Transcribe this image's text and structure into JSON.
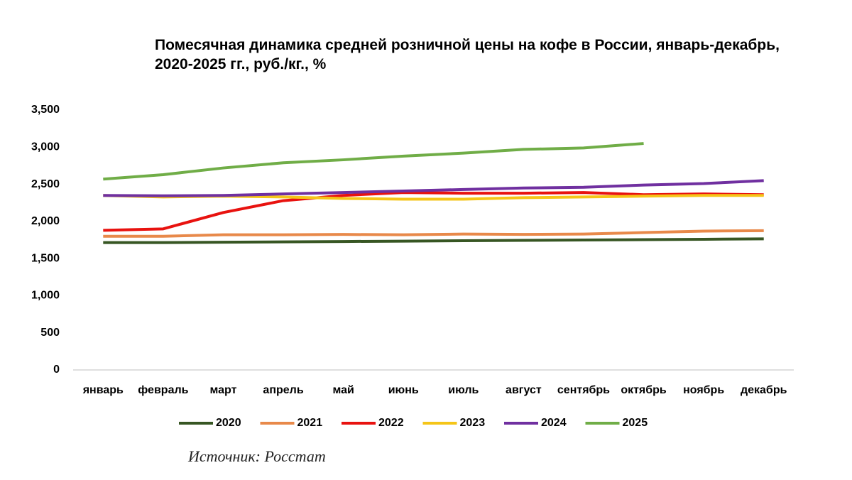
{
  "chart_data": {
    "type": "line",
    "title": "Помесячная динамика средней розничной цены на кофе в России, январь-декабрь, 2020-2025 гг., руб./кг., %",
    "source": "Источник: Росстат",
    "categories": [
      "январь",
      "февраль",
      "март",
      "апрель",
      "май",
      "июнь",
      "июль",
      "август",
      "сентябрь",
      "октябрь",
      "ноябрь",
      "декабрь"
    ],
    "ylim": [
      0,
      3500
    ],
    "yticks": [
      0,
      500,
      {
        "value": 1000,
        "label": "1,000"
      },
      {
        "value": 1500,
        "label": "1,500"
      },
      {
        "value": 2000,
        "label": "2,000"
      },
      {
        "value": 2500,
        "label": "2,500"
      },
      {
        "value": 3000,
        "label": "3,000"
      },
      {
        "value": 3500,
        "label": "3,500"
      }
    ],
    "grid": false,
    "legend": "bottom",
    "series": [
      {
        "name": "2020",
        "color": "#375623",
        "values": [
          1715,
          1715,
          1720,
          1725,
          1730,
          1735,
          1740,
          1745,
          1750,
          1755,
          1760,
          1765
        ]
      },
      {
        "name": "2021",
        "color": "#e8894a",
        "values": [
          1800,
          1800,
          1820,
          1820,
          1825,
          1820,
          1830,
          1825,
          1830,
          1850,
          1870,
          1875
        ]
      },
      {
        "name": "2022",
        "color": "#e8120f",
        "values": [
          1880,
          1900,
          2120,
          2280,
          2350,
          2390,
          2380,
          2380,
          2390,
          2360,
          2370,
          2360
        ]
      },
      {
        "name": "2023",
        "color": "#f5c518",
        "values": [
          2350,
          2330,
          2340,
          2330,
          2310,
          2300,
          2300,
          2320,
          2330,
          2340,
          2350,
          2350
        ]
      },
      {
        "name": "2024",
        "color": "#7030a0",
        "values": [
          2350,
          2345,
          2350,
          2370,
          2390,
          2410,
          2430,
          2450,
          2460,
          2490,
          2510,
          2550
        ]
      },
      {
        "name": "2025",
        "color": "#70ad47",
        "values": [
          2570,
          2630,
          2720,
          2790,
          2830,
          2880,
          2920,
          2970,
          2990,
          3050,
          null,
          null
        ]
      }
    ]
  }
}
